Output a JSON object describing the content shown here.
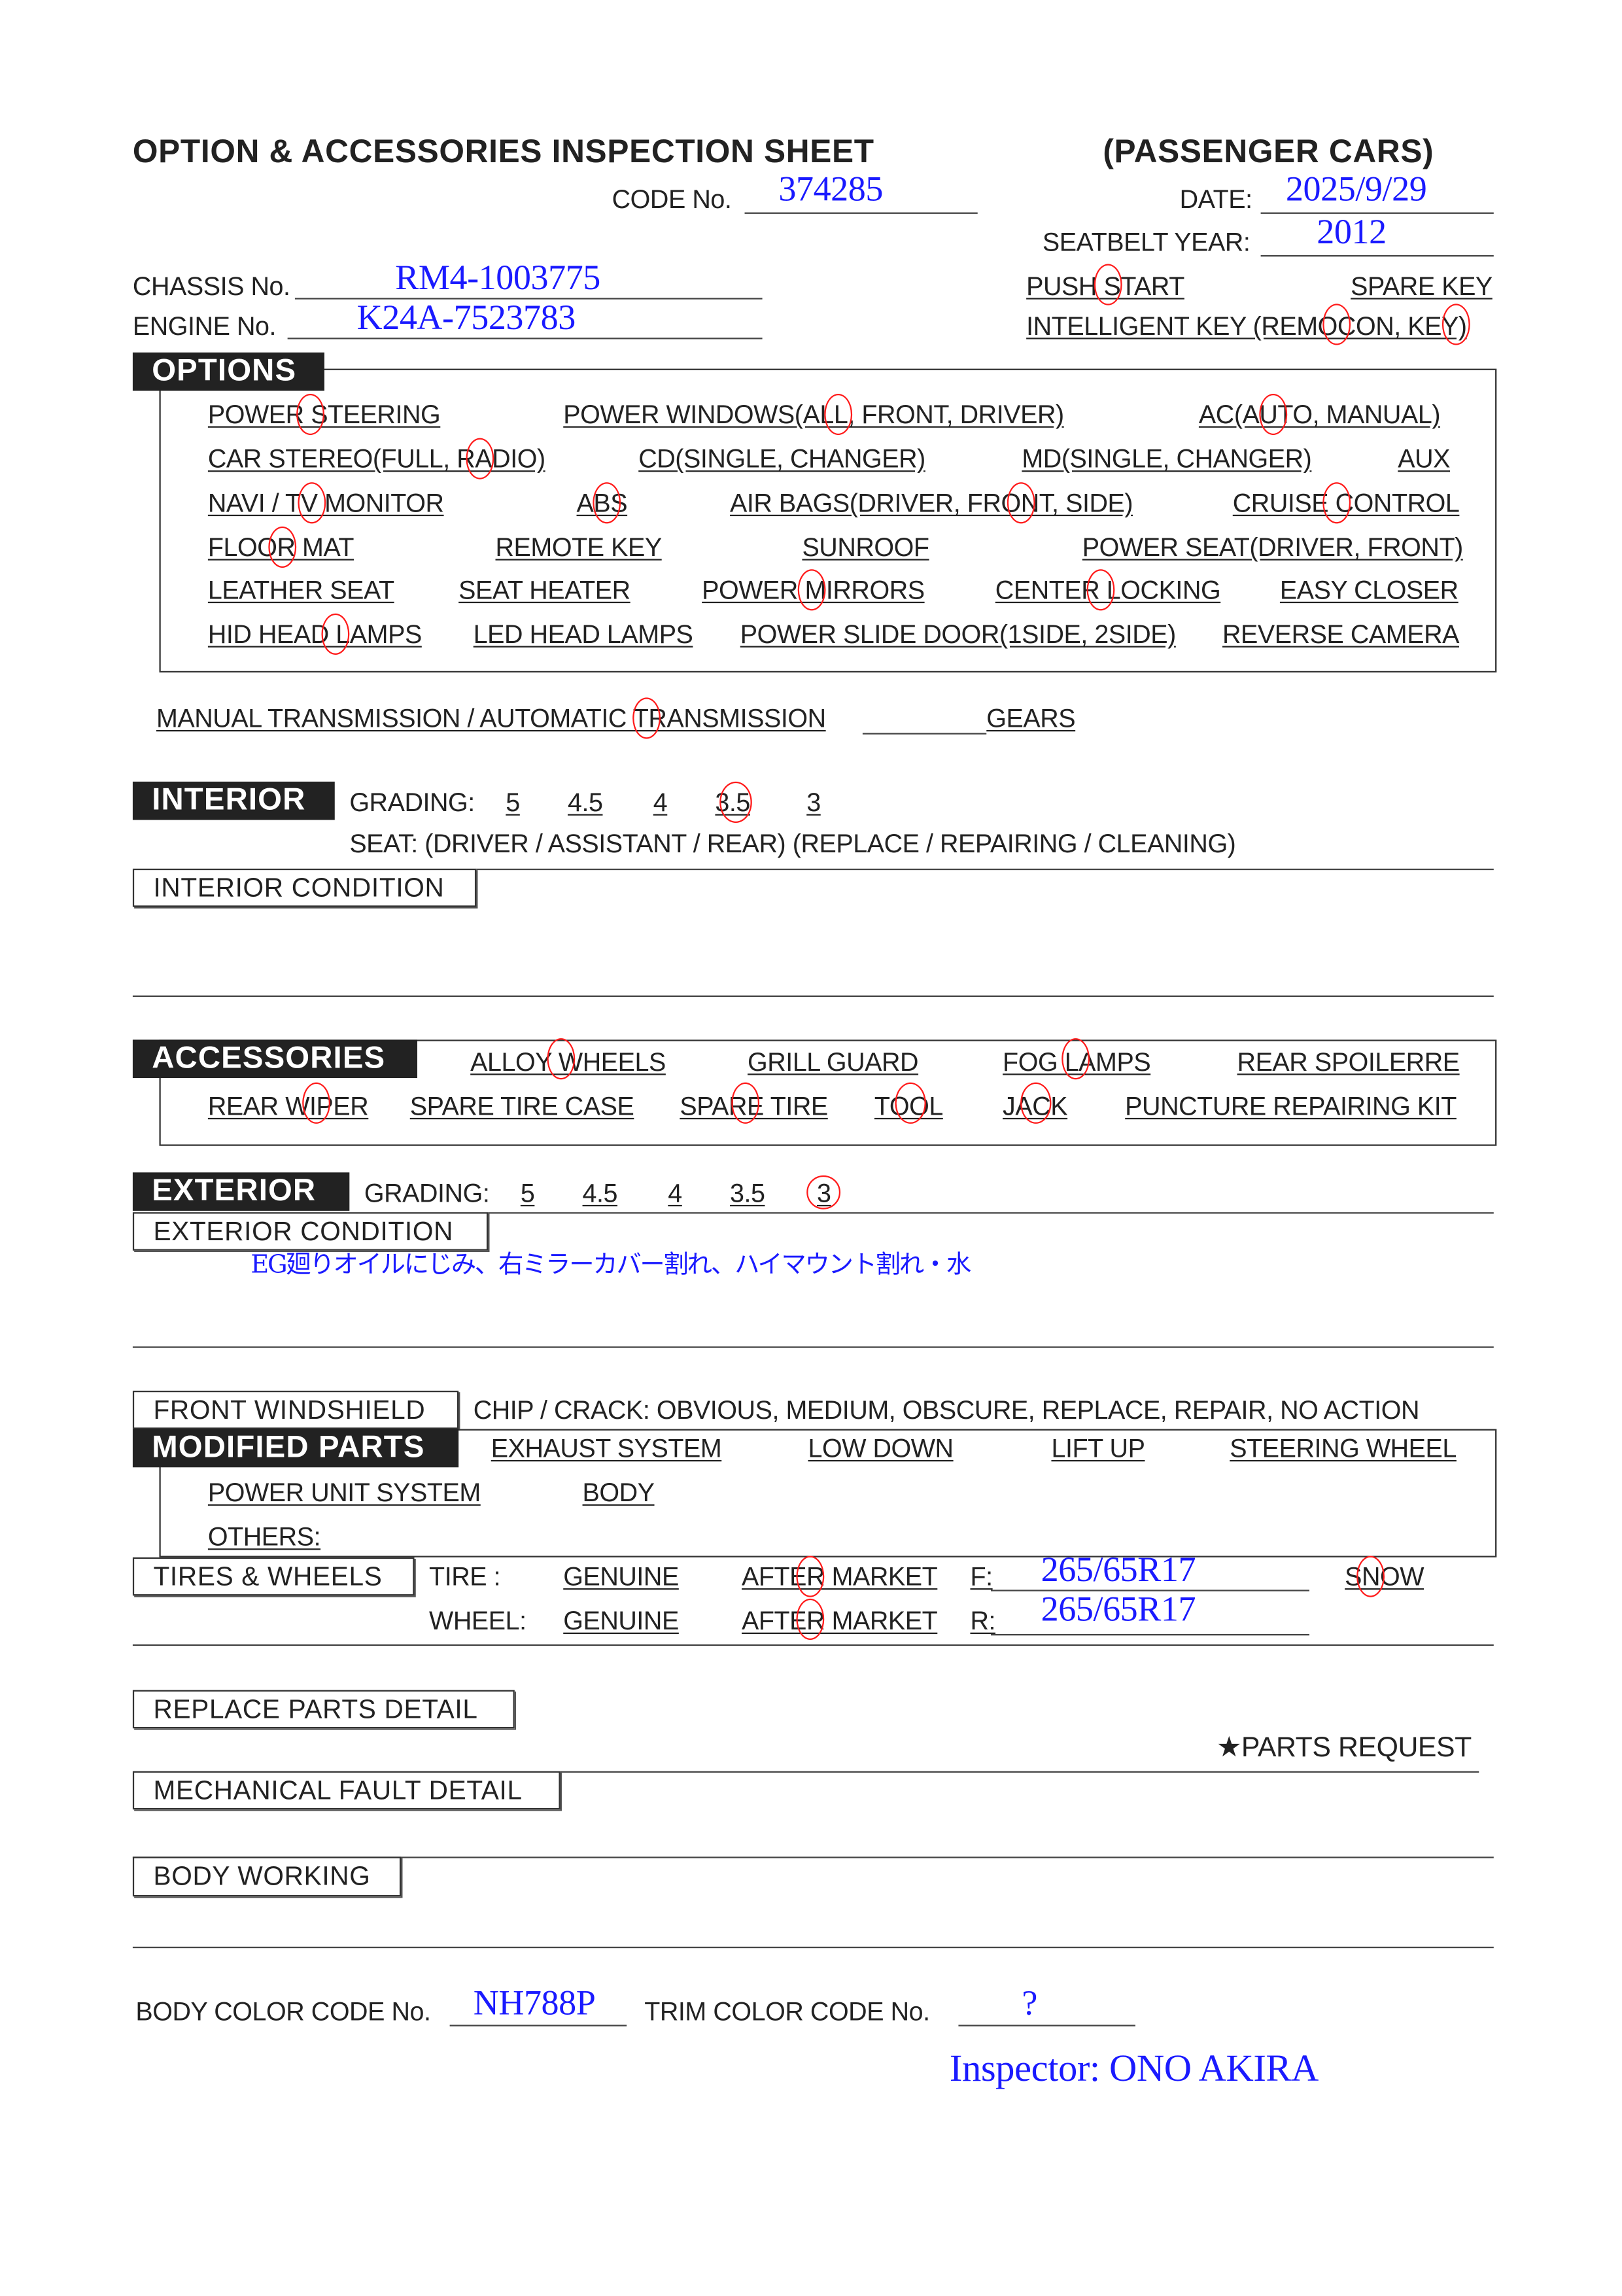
{
  "header": {
    "title": "OPTION & ACCESSORIES INSPECTION SHEET",
    "subtitle": "(PASSENGER CARS)",
    "code_label": "CODE No.",
    "code_value": "374285",
    "date_label": "DATE:",
    "date_value": "2025/9/29",
    "seatbelt_label": "SEATBELT YEAR:",
    "seatbelt_value": "2012",
    "chassis_label": "CHASSIS No.",
    "chassis_value": "RM4-1003775",
    "engine_label": "ENGINE No.",
    "engine_value": "K24A-7523783",
    "push_start": "PUSH START",
    "spare_key": "SPARE KEY",
    "intelligent_key": "INTELLIGENT KEY (REMOCON, KEY)"
  },
  "options": {
    "label": "OPTIONS",
    "items": [
      {
        "label": "POWER STEERING",
        "circled": true
      },
      {
        "label": "POWER WINDOWS(ALL, FRONT, DRIVER)",
        "circled": "ALL"
      },
      {
        "label": "AC(AUTO, MANUAL)",
        "circled": "AUTO"
      },
      {
        "label": "CAR STEREO(FULL, RADIO)",
        "circled": "RADIO"
      },
      {
        "label": "CD(SINGLE, CHANGER)",
        "circled": false
      },
      {
        "label": "MD(SINGLE, CHANGER)",
        "circled": false
      },
      {
        "label": "AUX",
        "circled": false
      },
      {
        "label": "NAVI / TV MONITOR",
        "circled": "TV"
      },
      {
        "label": "ABS",
        "circled": true
      },
      {
        "label": "AIR BAGS(DRIVER, FRONT, SIDE)",
        "circled": "FRONT"
      },
      {
        "label": "CRUISE CONTROL",
        "circled": true
      },
      {
        "label": "FLOOR MAT",
        "circled": true
      },
      {
        "label": "REMOTE KEY",
        "circled": false
      },
      {
        "label": "SUNROOF",
        "circled": false
      },
      {
        "label": "POWER SEAT(DRIVER, FRONT)",
        "circled": false
      },
      {
        "label": "LEATHER SEAT",
        "circled": false
      },
      {
        "label": "SEAT HEATER",
        "circled": false
      },
      {
        "label": "POWER MIRRORS",
        "circled": true
      },
      {
        "label": "CENTER LOCKING",
        "circled": true
      },
      {
        "label": "EASY CLOSER",
        "circled": false
      },
      {
        "label": "HID HEAD LAMPS",
        "circled": true
      },
      {
        "label": "LED HEAD LAMPS",
        "circled": false
      },
      {
        "label": "POWER SLIDE DOOR(1SIDE,  2SIDE)",
        "circled": false
      },
      {
        "label": "REVERSE CAMERA",
        "circled": false
      }
    ]
  },
  "transmission": {
    "text": "MANUAL TRANSMISSION / AUTOMATIC TRANSMISSION",
    "selected": "AUTOMATIC",
    "gears": "GEARS"
  },
  "interior": {
    "label": "INTERIOR",
    "grading_label": "GRADING:",
    "grades": [
      "5",
      "4.5",
      "4",
      "3.5",
      "3"
    ],
    "selected_grade": "3.5",
    "seat_line": "SEAT:  (DRIVER / ASSISTANT / REAR)    (REPLACE / REPAIRING / CLEANING)",
    "condition_label": "INTERIOR CONDITION"
  },
  "accessories": {
    "label": "ACCESSORIES",
    "items": [
      {
        "label": "ALLOY WHEELS",
        "circled": true
      },
      {
        "label": "GRILL GUARD",
        "circled": false
      },
      {
        "label": "FOG LAMPS",
        "circled": true
      },
      {
        "label": "REAR SPOILERRE",
        "circled": false
      },
      {
        "label": "REAR WIPER",
        "circled": true
      },
      {
        "label": "SPARE TIRE CASE",
        "circled": false
      },
      {
        "label": "SPARE TIRE",
        "circled": true
      },
      {
        "label": "TOOL",
        "circled": true
      },
      {
        "label": "JACK",
        "circled": true
      },
      {
        "label": "PUNCTURE REPAIRING KIT",
        "circled": false
      }
    ]
  },
  "exterior": {
    "label": "EXTERIOR",
    "grading_label": "GRADING:",
    "grades": [
      "5",
      "4.5",
      "4",
      "3.5",
      "3"
    ],
    "selected_grade": "3",
    "condition_label": "EXTERIOR CONDITION",
    "condition_note": "EG廻りオイルにじみ、右ミラーカバー割れ、ハイマウント割れ・水"
  },
  "windshield": {
    "label": "FRONT WINDSHIELD",
    "text": "CHIP / CRACK:  OBVIOUS,  MEDIUM,  OBSCURE,  REPLACE,  REPAIR,  NO ACTION"
  },
  "modified": {
    "label": "MODIFIED PARTS",
    "items": [
      "EXHAUST SYSTEM",
      "LOW DOWN",
      "LIFT UP",
      "STEERING WHEEL",
      "POWER UNIT SYSTEM",
      "BODY",
      "OTHERS:"
    ]
  },
  "tires": {
    "label": "TIRES & WHEELS",
    "tire_label": "TIRE :",
    "wheel_label": "WHEEL:",
    "genuine": "GENUINE",
    "after_market": "AFTER MARKET",
    "front_label": "F:",
    "front_value": "265/65R17",
    "rear_label": "R:",
    "rear_value": "265/65R17",
    "snow": "SNOW",
    "tire_selected": "AFTER MARKET",
    "wheel_selected": "AFTER MARKET",
    "snow_circled": true
  },
  "details": {
    "replace_parts": "REPLACE PARTS DETAIL",
    "parts_request": "★PARTS REQUEST",
    "mechanical_fault": "MECHANICAL FAULT DETAIL",
    "body_working": "BODY WORKING"
  },
  "footer": {
    "body_color_label": "BODY COLOR CODE No.",
    "body_color_value": "NH788P",
    "trim_color_label": "TRIM COLOR CODE No.",
    "trim_color_value": "?",
    "inspector": "Inspector: ONO AKIRA"
  },
  "colors": {
    "handwriting": "#1a1aff",
    "circle_mark": "#ff1a1a",
    "label_fill": "#222222"
  }
}
